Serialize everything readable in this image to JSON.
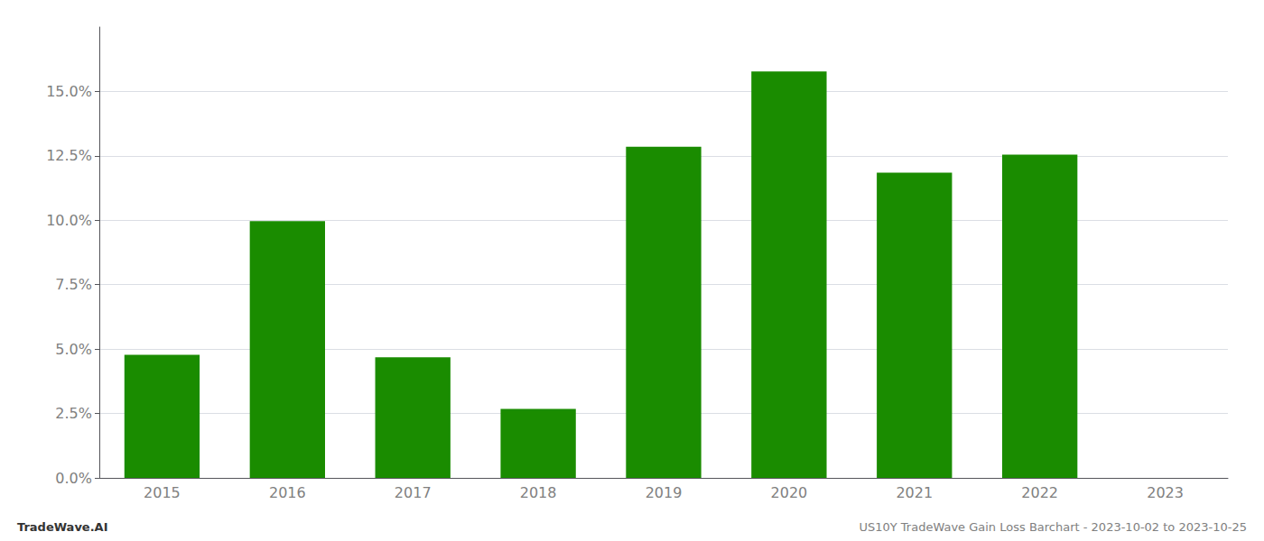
{
  "chart_data": {
    "type": "bar",
    "categories": [
      "2015",
      "2016",
      "2017",
      "2018",
      "2019",
      "2020",
      "2021",
      "2022",
      "2023"
    ],
    "values": [
      0.0478,
      0.0997,
      0.0468,
      0.0268,
      0.1285,
      0.1578,
      0.1185,
      0.1255,
      null
    ],
    "color": "#1a8c00",
    "ylim": [
      0,
      0.175
    ],
    "yticks": [
      {
        "value": 0.0,
        "label": "0.0%"
      },
      {
        "value": 0.025,
        "label": "2.5%"
      },
      {
        "value": 0.05,
        "label": "5.0%"
      },
      {
        "value": 0.075,
        "label": "7.5%"
      },
      {
        "value": 0.1,
        "label": "10.0%"
      },
      {
        "value": 0.125,
        "label": "12.5%"
      },
      {
        "value": 0.15,
        "label": "15.0%"
      }
    ],
    "grid": true,
    "annotations": [
      "TradeWave.AI",
      "US10Y TradeWave Gain Loss Barchart - 2023-10-02 to 2023-10-25"
    ]
  }
}
